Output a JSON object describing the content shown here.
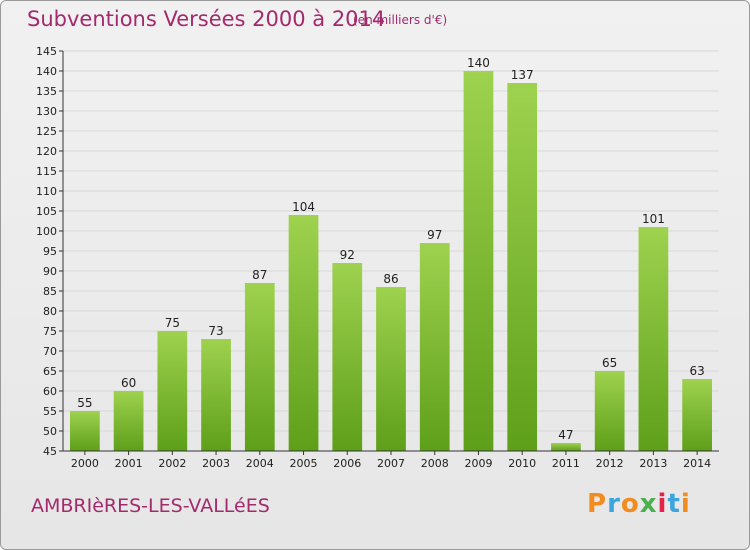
{
  "header": {
    "title": "Subventions Versées 2000 à 2014",
    "subtitle": "(en milliers d'€)"
  },
  "footer": {
    "commune": "AMBRIèRES-LES-VALLéES",
    "brand": "Proxiti",
    "brand_colors": [
      "#f28c1e",
      "#3aa6dd",
      "#f28c1e",
      "#4caf50",
      "#e2244a",
      "#3aa6dd",
      "#f28c1e"
    ]
  },
  "colors": {
    "title": "#a32a6d",
    "bar_light": "#9ed24f",
    "bar_dark": "#5e9f19",
    "grid": "#d8d8d8",
    "axis": "#333333"
  },
  "chart_data": {
    "type": "bar",
    "categories": [
      "2000",
      "2001",
      "2002",
      "2003",
      "2004",
      "2005",
      "2006",
      "2007",
      "2008",
      "2009",
      "2010",
      "2011",
      "2012",
      "2013",
      "2014"
    ],
    "values": [
      55,
      60,
      75,
      73,
      87,
      104,
      92,
      86,
      97,
      140,
      137,
      47,
      65,
      101,
      63
    ],
    "ylim": [
      45,
      145
    ],
    "ytick_step": 5,
    "grid": "horizontal",
    "data_labels": true
  }
}
